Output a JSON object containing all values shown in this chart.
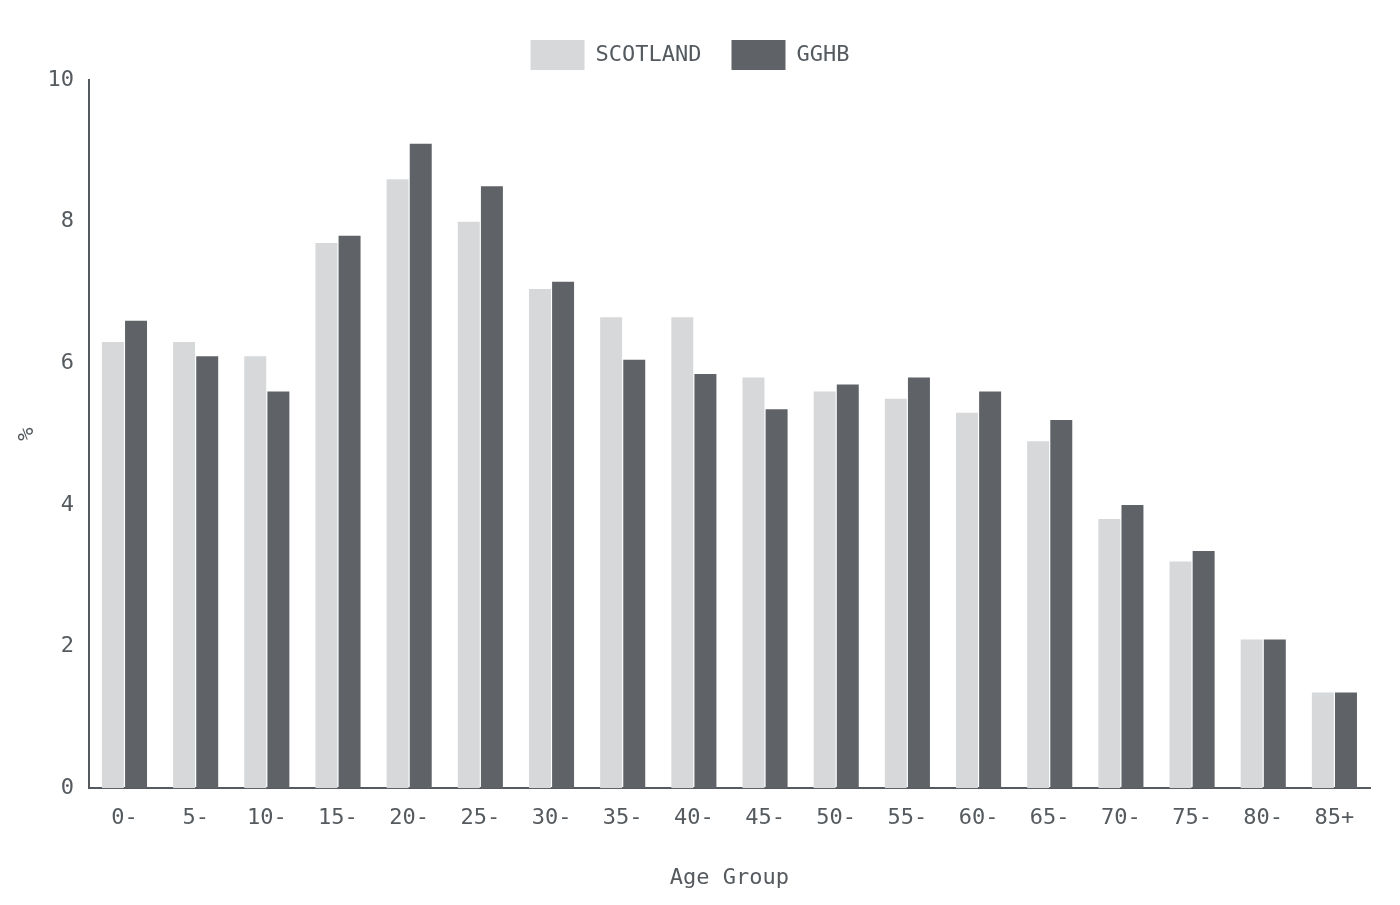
{
  "chart_data": {
    "type": "bar",
    "categories": [
      "0-",
      "5-",
      "10-",
      "15-",
      "20-",
      "25-",
      "30-",
      "35-",
      "40-",
      "45-",
      "50-",
      "55-",
      "60-",
      "65-",
      "70-",
      "75-",
      "80-",
      "85+"
    ],
    "series": [
      {
        "name": "SCOTLAND",
        "color": "#d6d8da",
        "values": [
          6.3,
          6.3,
          6.1,
          7.7,
          8.6,
          8.0,
          7.05,
          6.65,
          6.65,
          5.8,
          5.6,
          5.5,
          5.3,
          4.9,
          3.8,
          3.2,
          2.1,
          1.35
        ]
      },
      {
        "name": "GGHB",
        "color": "#5f6266",
        "values": [
          6.6,
          6.1,
          5.6,
          7.8,
          9.1,
          8.5,
          7.15,
          6.05,
          5.85,
          5.35,
          5.7,
          5.8,
          5.6,
          5.2,
          4.0,
          3.35,
          2.1,
          1.35
        ]
      }
    ],
    "xlabel": "Age Group",
    "ylabel": "%",
    "ylim": [
      0,
      10
    ],
    "yticks": [
      0,
      2,
      4,
      6,
      8,
      10
    ],
    "grid": false,
    "legend": "top"
  }
}
